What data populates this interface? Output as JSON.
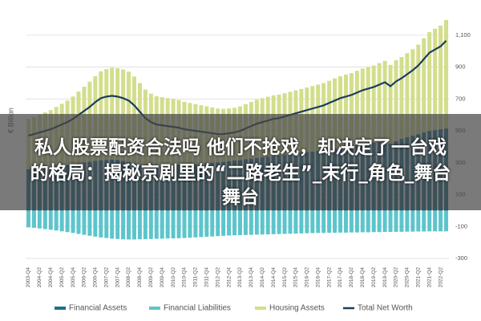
{
  "chart_data": {
    "type": "bar",
    "stacked": true,
    "ylabel": "€ Billion",
    "categories": [
      "2003-Q4",
      null,
      "2004-Q2",
      null,
      "2004-Q4",
      null,
      "2005-Q2",
      null,
      "2005-Q4",
      null,
      "2006-Q2",
      null,
      "2006-Q4",
      null,
      "2007-Q2",
      null,
      "2007-Q4",
      null,
      "2008-Q2",
      null,
      "2008-Q4",
      null,
      "2009-Q2",
      null,
      "2009-Q4",
      null,
      "2010-Q2",
      null,
      "2010-Q4",
      null,
      "2011-Q2",
      null,
      "2011-Q4",
      null,
      "2012-Q2",
      null,
      "2012-Q4",
      null,
      "2013-Q2",
      null,
      "2013-Q4",
      null,
      "2014-Q2",
      null,
      "2014-Q4",
      null,
      "2015-Q2",
      null,
      "2015-Q4",
      null,
      "2016-Q2",
      null,
      "2016-Q4",
      null,
      "2017-Q2",
      null,
      "2017-Q4",
      null,
      "2018-Q2",
      null,
      "2018-Q4",
      null,
      "2019-Q2",
      null,
      "2019-Q4",
      null,
      "2020-Q2",
      null,
      "2020-Q4",
      null,
      "2021-Q2",
      null,
      "2021-Q4",
      null,
      "2022-Q2",
      null
    ],
    "series": [
      {
        "name": "Financial Assets",
        "type": "bar",
        "color": "#1f6e8c",
        "values": [
          260,
          263,
          266,
          270,
          274,
          278,
          282,
          287,
          292,
          297,
          302,
          307,
          312,
          316,
          318,
          320,
          318,
          312,
          305,
          295,
          285,
          278,
          275,
          278,
          282,
          284,
          286,
          288,
          290,
          290,
          292,
          295,
          298,
          300,
          303,
          306,
          310,
          314,
          318,
          322,
          326,
          330,
          334,
          338,
          342,
          346,
          350,
          354,
          358,
          362,
          366,
          370,
          375,
          380,
          385,
          390,
          395,
          400,
          405,
          410,
          415,
          420,
          425,
          430,
          435,
          420,
          435,
          450,
          460,
          470,
          480,
          490,
          500,
          505,
          510,
          515
        ]
      },
      {
        "name": "Financial Liabilities",
        "type": "bar",
        "color": "#5cc5cc",
        "values": [
          -105,
          -108,
          -112,
          -116,
          -120,
          -125,
          -130,
          -135,
          -140,
          -146,
          -152,
          -158,
          -163,
          -168,
          -172,
          -176,
          -178,
          -180,
          -181,
          -181,
          -180,
          -179,
          -178,
          -177,
          -176,
          -175,
          -174,
          -173,
          -172,
          -170,
          -168,
          -166,
          -164,
          -162,
          -160,
          -158,
          -156,
          -155,
          -154,
          -153,
          -152,
          -151,
          -150,
          -149,
          -148,
          -147,
          -146,
          -145,
          -144,
          -143,
          -142,
          -141,
          -140,
          -140,
          -139,
          -139,
          -138,
          -138,
          -137,
          -137,
          -136,
          -136,
          -135,
          -135,
          -134,
          -134,
          -133,
          -133,
          -132,
          -132,
          -131,
          -131,
          -130,
          -130,
          -130,
          -130
        ]
      },
      {
        "name": "Housing Assets",
        "type": "bar",
        "color": "#d3de8c",
        "values": [
          315,
          325,
          336,
          346,
          356,
          372,
          388,
          403,
          423,
          449,
          475,
          501,
          531,
          557,
          569,
          576,
          575,
          573,
          566,
          546,
          515,
          481,
          458,
          439,
          429,
          421,
          413,
          405,
          392,
          385,
          376,
          366,
          356,
          347,
          337,
          332,
          331,
          331,
          336,
          346,
          356,
          366,
          371,
          376,
          381,
          381,
          386,
          391,
          396,
          401,
          406,
          411,
          415,
          420,
          429,
          439,
          448,
          453,
          457,
          467,
          476,
          481,
          485,
          495,
          504,
          494,
          508,
          513,
          527,
          542,
          561,
          591,
          620,
          635,
          650,
          680
        ]
      },
      {
        "name": "Total Net Worth",
        "type": "line",
        "color": "#1c3d5c",
        "values": [
          470,
          480,
          490,
          500,
          510,
          525,
          540,
          555,
          575,
          600,
          625,
          650,
          680,
          705,
          715,
          720,
          715,
          705,
          690,
          660,
          620,
          580,
          555,
          540,
          535,
          530,
          525,
          520,
          510,
          505,
          500,
          495,
          490,
          485,
          480,
          480,
          485,
          490,
          500,
          515,
          530,
          545,
          555,
          565,
          575,
          580,
          590,
          600,
          610,
          620,
          630,
          640,
          650,
          660,
          675,
          690,
          705,
          715,
          725,
          740,
          755,
          765,
          775,
          790,
          805,
          780,
          810,
          830,
          855,
          880,
          910,
          950,
          990,
          1010,
          1030,
          1065
        ]
      }
    ],
    "ylim": [
      -330,
      1220
    ],
    "yticks": [
      -300,
      -100,
      100,
      300,
      500,
      700,
      900,
      {
        "value": 1100,
        "label": "1,100"
      }
    ],
    "grid": true
  },
  "banner": {
    "lines": [
      "私人股票配资合法吗 他们不抢戏，却决定了一台戏",
      "的格局：揭秘京剧里的“二路老生”_末行_角色_舞台",
      "舞台"
    ]
  }
}
